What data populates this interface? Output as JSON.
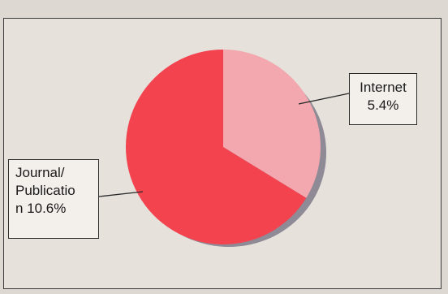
{
  "chart_data": {
    "type": "pie",
    "title": "",
    "slices": [
      {
        "label_lines": [
          "Internet",
          "5.4%"
        ],
        "percent": 5.4,
        "color": "#f2a8ae"
      },
      {
        "label_lines": [
          "Journal/",
          "Publicatio",
          "n 10.6%"
        ],
        "percent": 10.6,
        "color": "#f2434f"
      }
    ],
    "shadow_color": "#8e8a96",
    "start_angle_deg": 0
  }
}
